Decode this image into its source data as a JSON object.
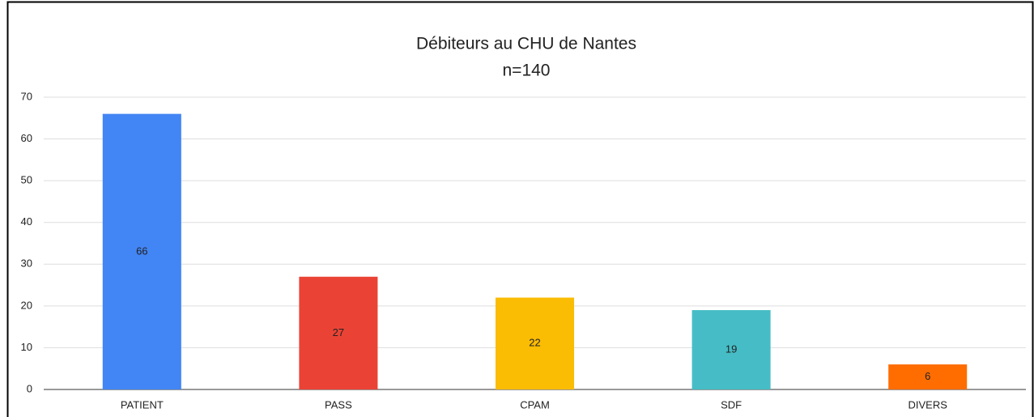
{
  "chart_data": {
    "type": "bar",
    "title": "Débiteurs au CHU de Nantes",
    "subtitle": "n=140",
    "categories": [
      "PATIENT",
      "PASS",
      "CPAM",
      "SDF",
      "DIVERS"
    ],
    "values": [
      66,
      27,
      22,
      19,
      6
    ],
    "colors": [
      "#4285f4",
      "#ea4335",
      "#fbbc04",
      "#46bdc6",
      "#ff6d01"
    ],
    "ylim": [
      0,
      70
    ],
    "yticks": [
      0,
      10,
      20,
      30,
      40,
      50,
      60,
      70
    ],
    "grid": true
  }
}
